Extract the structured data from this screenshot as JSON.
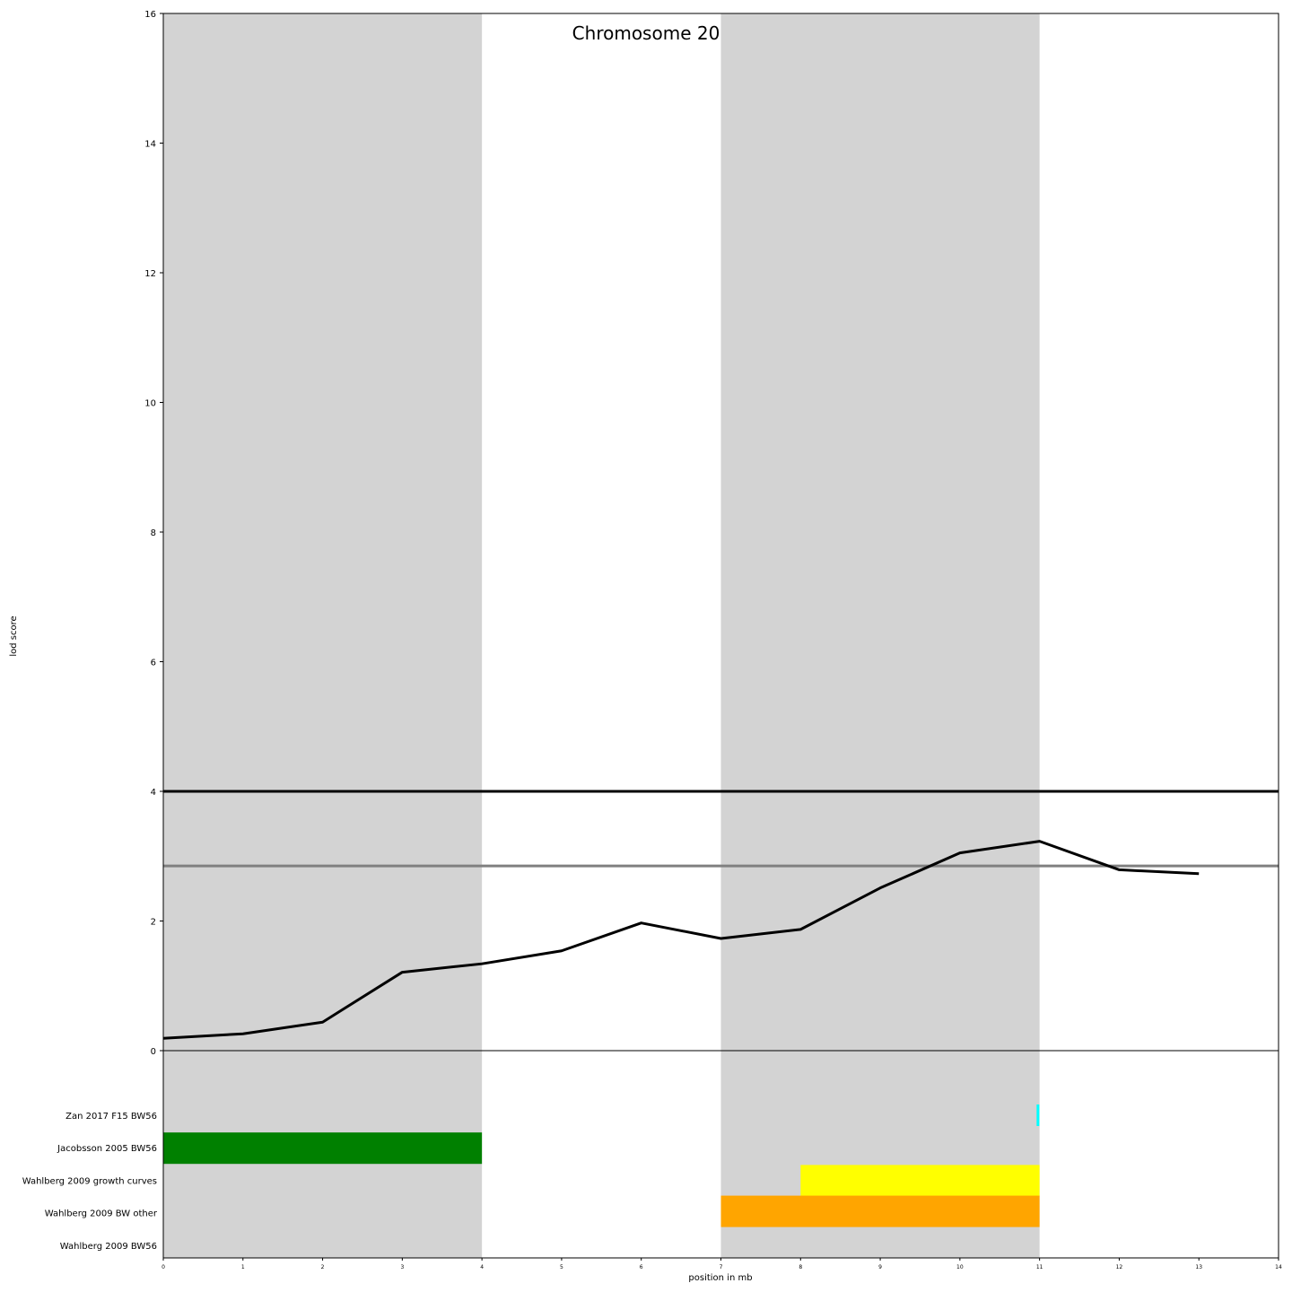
{
  "chart_data": {
    "type": "line",
    "title": "Chromosome 20",
    "xlabel": "position in mb",
    "ylabel": "lod score",
    "xlim": [
      0,
      14
    ],
    "ylim": [
      0,
      16
    ],
    "x_ticks": [
      0,
      1,
      2,
      3,
      4,
      5,
      6,
      7,
      8,
      9,
      10,
      11,
      12,
      13,
      14
    ],
    "y_ticks": [
      0,
      2,
      4,
      6,
      8,
      10,
      12,
      14,
      16
    ],
    "background_bands": [
      {
        "from": 0,
        "to": 4,
        "color": "#d3d3d3"
      },
      {
        "from": 7,
        "to": 11,
        "color": "#d3d3d3"
      }
    ],
    "thresholds": [
      {
        "value": 4.0,
        "color": "#000000"
      },
      {
        "value": 2.85,
        "color": "#808080"
      }
    ],
    "series": [
      {
        "x": [
          0,
          1,
          2,
          3,
          4,
          5,
          6,
          7,
          8,
          9,
          10,
          11,
          12,
          13
        ],
        "values": [
          0.19,
          0.26,
          0.44,
          1.21,
          1.34,
          1.54,
          1.97,
          1.73,
          1.87,
          2.51,
          3.05,
          3.23,
          2.79,
          2.73
        ],
        "color": "#000000"
      }
    ],
    "qtl_tracks": [
      {
        "label": "Zan 2017 F15 BW56",
        "intervals": [
          {
            "start": 10.98,
            "end": 11.02,
            "color": "#00ffff"
          }
        ],
        "thin": true
      },
      {
        "label": "Jacobsson 2005 BW56",
        "intervals": [
          {
            "start": 0,
            "end": 4,
            "color": "#008000"
          }
        ]
      },
      {
        "label": "Wahlberg 2009 growth curves",
        "intervals": [
          {
            "start": 8,
            "end": 11,
            "color": "#ffff00"
          }
        ]
      },
      {
        "label": "Wahlberg 2009 BW other",
        "intervals": [
          {
            "start": 7,
            "end": 11,
            "color": "#ffa500"
          }
        ]
      },
      {
        "label": "Wahlberg 2009 BW56",
        "intervals": []
      }
    ]
  }
}
